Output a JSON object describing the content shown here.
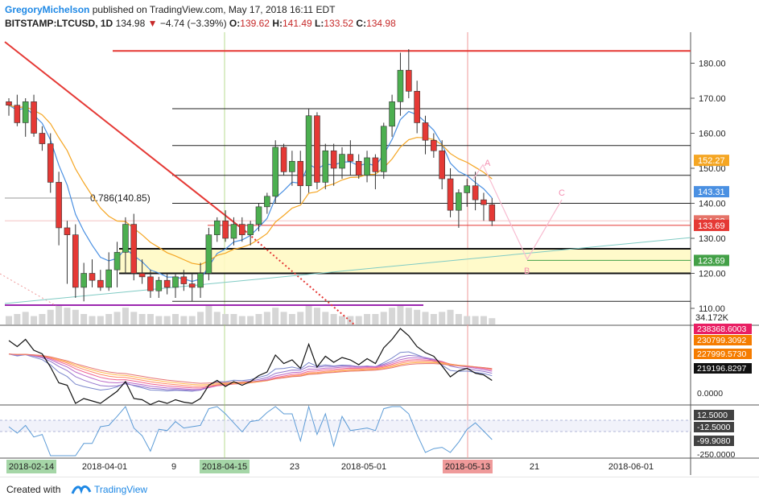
{
  "header": {
    "author": "GregoryMichelson",
    "published": "published on TradingView.com, May 17, 2018 16:11 EDT",
    "symbol": "BITSTAMP:LTCUSD, 1D",
    "last": "134.98",
    "change": "−4.74 (−3.39%)",
    "open_label": "O:",
    "open": "139.62",
    "high_label": "H:",
    "high": "141.49",
    "low_label": "L:",
    "low": "133.52",
    "close_label": "C:",
    "close": "134.98"
  },
  "footer": {
    "created_with": "Created with",
    "brand": "TradingView"
  },
  "chart_data": {
    "type": "candlestick",
    "x_tick_labels": [
      "2018-02-14",
      "2018-04-01",
      "9",
      "2018-04-15",
      "23",
      "2018-05-01",
      "2018-05-13",
      "21",
      "2018-06-01"
    ],
    "price_axis": {
      "ticks": [
        "180.00",
        "170.00",
        "160.00",
        "150.00",
        "140.00",
        "130.00",
        "120.00",
        "110.00"
      ],
      "ylim": [
        110,
        185
      ],
      "badges": [
        {
          "value": 152.27,
          "text": "152.27",
          "color": "#f5a623"
        },
        {
          "value": 143.31,
          "text": "143.31",
          "color": "#4a90e2"
        },
        {
          "value": 134.98,
          "text": "134.98",
          "color": "#e57368"
        },
        {
          "value": 133.69,
          "text": "133.69",
          "color": "#e53935"
        },
        {
          "value": 123.69,
          "text": "123.69",
          "color": "#43a047"
        }
      ]
    },
    "fib_label": "0.786(140.85)",
    "pattern_labels": [
      "A",
      "B",
      "C"
    ],
    "volume_label": "34.172K",
    "candles": [
      [
        169,
        170,
        165,
        168
      ],
      [
        168,
        171,
        162,
        163
      ],
      [
        163,
        170,
        159,
        169
      ],
      [
        169,
        171,
        159,
        160
      ],
      [
        160,
        162,
        155,
        157
      ],
      [
        157,
        160,
        143,
        146
      ],
      [
        146,
        149,
        128,
        133
      ],
      [
        133,
        135,
        117,
        131
      ],
      [
        131,
        134,
        113,
        116
      ],
      [
        116,
        123,
        112,
        120
      ],
      [
        120,
        124,
        116,
        118
      ],
      [
        118,
        121,
        115,
        116
      ],
      [
        116,
        126,
        115,
        121
      ],
      [
        121,
        129,
        116,
        126
      ],
      [
        126,
        136,
        120,
        134
      ],
      [
        134,
        137,
        118,
        120
      ],
      [
        120,
        124,
        117,
        119
      ],
      [
        119,
        121,
        113,
        115
      ],
      [
        115,
        119,
        113,
        118
      ],
      [
        118,
        120,
        114,
        116
      ],
      [
        116,
        120,
        113,
        119
      ],
      [
        119,
        121,
        115,
        117
      ],
      [
        117,
        120,
        112,
        116
      ],
      [
        116,
        123,
        113,
        120
      ],
      [
        120,
        133,
        118,
        131
      ],
      [
        131,
        136,
        129,
        135
      ],
      [
        135,
        138,
        129,
        130
      ],
      [
        130,
        136,
        128,
        134
      ],
      [
        134,
        136,
        129,
        131
      ],
      [
        131,
        135,
        128,
        134
      ],
      [
        134,
        140,
        132,
        139
      ],
      [
        139,
        143,
        137,
        142
      ],
      [
        142,
        158,
        140,
        156
      ],
      [
        156,
        157,
        148,
        149
      ],
      [
        149,
        155,
        145,
        152
      ],
      [
        152,
        155,
        140,
        145
      ],
      [
        145,
        167,
        143,
        165
      ],
      [
        165,
        166,
        144,
        146
      ],
      [
        146,
        157,
        144,
        155
      ],
      [
        155,
        157,
        145,
        150
      ],
      [
        150,
        156,
        147,
        154
      ],
      [
        154,
        158,
        148,
        152
      ],
      [
        152,
        154,
        147,
        148
      ],
      [
        148,
        155,
        146,
        153
      ],
      [
        153,
        154,
        144,
        149
      ],
      [
        149,
        163,
        147,
        162
      ],
      [
        162,
        171,
        159,
        169
      ],
      [
        169,
        183,
        165,
        178
      ],
      [
        178,
        184,
        170,
        172
      ],
      [
        172,
        175,
        160,
        163
      ],
      [
        163,
        165,
        154,
        158
      ],
      [
        158,
        160,
        153,
        155
      ],
      [
        155,
        158,
        144,
        147
      ],
      [
        147,
        150,
        136,
        138
      ],
      [
        138,
        144,
        133,
        143
      ],
      [
        143,
        147,
        139,
        145
      ],
      [
        145,
        149,
        138,
        141
      ],
      [
        141,
        143,
        135,
        139.62
      ],
      [
        139.62,
        141.49,
        133.52,
        134.98
      ]
    ],
    "volume": [
      4,
      5,
      6,
      4,
      5,
      7,
      9,
      8,
      7,
      5,
      4,
      4,
      5,
      6,
      8,
      6,
      5,
      5,
      4,
      4,
      5,
      4,
      4,
      6,
      9,
      6,
      5,
      5,
      4,
      4,
      5,
      6,
      8,
      6,
      5,
      6,
      9,
      8,
      6,
      5,
      4,
      4,
      4,
      5,
      5,
      6,
      8,
      9,
      8,
      7,
      6,
      5,
      6,
      7,
      5,
      4,
      4,
      4,
      3
    ],
    "indicator1": {
      "labels": [
        {
          "text": "238368.6003",
          "color": "#e91e63"
        },
        {
          "text": "230799.3092",
          "color": "#f57c00"
        },
        {
          "text": "227999.5730",
          "color": "#f57c00"
        },
        {
          "text": "219196.8297",
          "color": "#111111"
        }
      ],
      "ticks": [
        "0.0000"
      ]
    },
    "indicator2": {
      "ticks": [
        "12.5000",
        "-12.5000",
        "-99.9080",
        "-250.0000"
      ]
    }
  }
}
